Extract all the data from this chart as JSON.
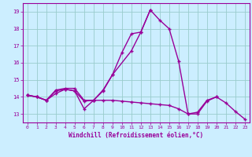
{
  "x_ticks": [
    0,
    1,
    2,
    3,
    4,
    5,
    6,
    7,
    8,
    9,
    10,
    11,
    12,
    13,
    14,
    15,
    16,
    17,
    18,
    19,
    20,
    21,
    22,
    23
  ],
  "line1_x": [
    0,
    1,
    2,
    3,
    4,
    5,
    6,
    7,
    8,
    9,
    11,
    12,
    13,
    14,
    15,
    16,
    17,
    18,
    19,
    20
  ],
  "line1_y": [
    14.1,
    14.0,
    13.8,
    14.4,
    14.5,
    14.5,
    13.8,
    13.8,
    14.4,
    15.3,
    16.7,
    17.8,
    19.1,
    18.5,
    18.0,
    16.1,
    13.0,
    13.1,
    13.8,
    14.0
  ],
  "line2_x": [
    0,
    1,
    2,
    3,
    4,
    5,
    6,
    7,
    8,
    9,
    10,
    11,
    12,
    13,
    14,
    15,
    16,
    17,
    18,
    19,
    20,
    21,
    22,
    23
  ],
  "line2_y": [
    14.1,
    14.0,
    13.8,
    14.2,
    14.45,
    14.35,
    13.75,
    13.8,
    13.8,
    13.8,
    13.75,
    13.7,
    13.65,
    13.6,
    13.55,
    13.5,
    13.3,
    13.0,
    13.0,
    13.75,
    14.0,
    13.65,
    13.15,
    12.7
  ],
  "line3_x": [
    0,
    1,
    2,
    3,
    4,
    5,
    6,
    7,
    8,
    9,
    10,
    11,
    12,
    13
  ],
  "line3_y": [
    14.1,
    14.0,
    13.8,
    14.35,
    14.45,
    14.35,
    13.3,
    13.8,
    14.35,
    15.3,
    16.6,
    17.7,
    17.8,
    19.1
  ],
  "ylim": [
    12.5,
    19.5
  ],
  "yticks": [
    13,
    14,
    15,
    16,
    17,
    18,
    19
  ],
  "line_color": "#990099",
  "bg_color": "#cceeff",
  "grid_color": "#99cccc",
  "xlabel": "Windchill (Refroidissement éolien,°C)",
  "xlabel_color": "#990099",
  "tick_color": "#990099",
  "marker": "+",
  "linewidth": 1.0,
  "markersize": 3.5
}
